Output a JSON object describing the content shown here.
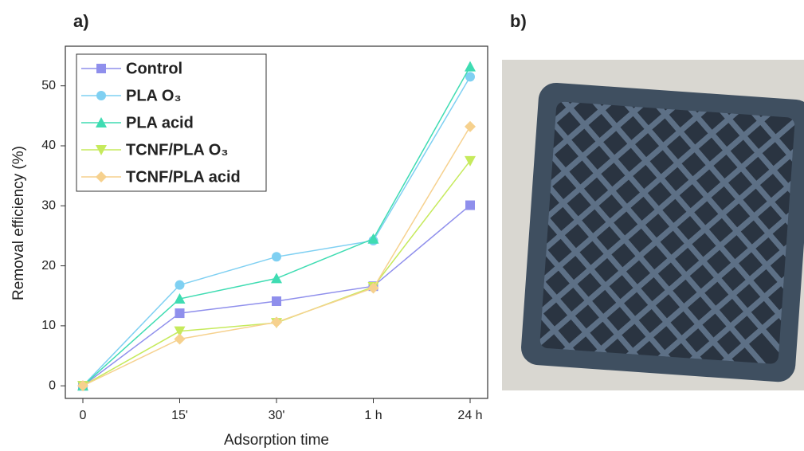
{
  "panels": [
    "a)",
    "b)"
  ],
  "chart_data": {
    "type": "line",
    "x_label": "Adsorption time",
    "y_label": "Removal efficiency (%)",
    "categories": [
      "0",
      "15'",
      "30'",
      "1 h",
      "24 h"
    ],
    "ylim": [
      -2.1,
      56.6
    ],
    "yticks": [
      0,
      10,
      20,
      30,
      40,
      50
    ],
    "legend": "upper left",
    "series": [
      {
        "name": "Control",
        "color": "#8f8fec",
        "marker": "square",
        "values": [
          0,
          12.1,
          14.1,
          16.6,
          30.1
        ]
      },
      {
        "name": "PLA O₃",
        "color": "#7fd0f2",
        "marker": "circle",
        "values": [
          0,
          16.8,
          21.5,
          24.2,
          51.5
        ]
      },
      {
        "name": "PLA acid",
        "color": "#3fdcb2",
        "marker": "triangle-up",
        "values": [
          0,
          14.5,
          17.9,
          24.5,
          53.2
        ]
      },
      {
        "name": "TCNF/PLA O₃",
        "color": "#c6ea5c",
        "marker": "triangle-down",
        "values": [
          0,
          9.1,
          10.5,
          16.5,
          37.5
        ]
      },
      {
        "name": "TCNF/PLA acid",
        "color": "#f6d18e",
        "marker": "diamond",
        "values": [
          0,
          7.8,
          10.6,
          16.3,
          43.2
        ]
      }
    ]
  }
}
